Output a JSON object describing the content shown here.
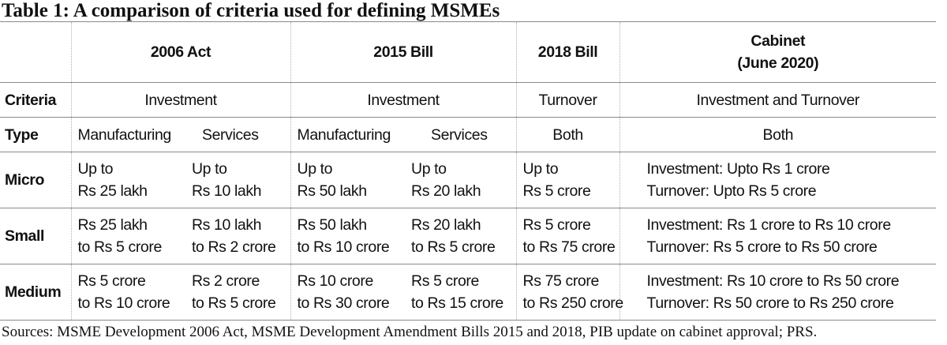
{
  "title": "Table 1: A comparison of criteria used for defining MSMEs",
  "headers": [
    "2006 Act",
    "2015 Bill",
    "2018 Bill",
    "Cabinet\n(June 2020)"
  ],
  "header_cabinet_line1": "Cabinet",
  "header_cabinet_line2": "(June 2020)",
  "criteria": {
    "label": "Criteria",
    "values": [
      "Investment",
      "Investment",
      "Turnover",
      "Investment and Turnover"
    ]
  },
  "type": {
    "label": "Type",
    "values": [
      "Manufacturing",
      "Services",
      "Manufacturing",
      "Services",
      "Both",
      "Both"
    ]
  },
  "rows": [
    {
      "label": "Micro",
      "cells": [
        [
          "Up to",
          "Rs 25 lakh"
        ],
        [
          "Up to",
          "Rs 10 lakh"
        ],
        [
          "Up to",
          "Rs 50 lakh"
        ],
        [
          "Up to",
          "Rs 20 lakh"
        ],
        [
          "Up to",
          "Rs 5 crore"
        ],
        [
          "Investment: Upto Rs 1 crore",
          "Turnover: Upto Rs 5 crore"
        ]
      ]
    },
    {
      "label": "Small",
      "cells": [
        [
          "Rs 25 lakh",
          "to Rs 5 crore"
        ],
        [
          "Rs 10 lakh",
          "to Rs 2 crore"
        ],
        [
          "Rs 50 lakh",
          "to Rs 10 crore"
        ],
        [
          "Rs 20 lakh",
          "to Rs 5 crore"
        ],
        [
          "Rs 5 crore",
          "to Rs 75 crore"
        ],
        [
          "Investment: Rs 1 crore to Rs 10 crore",
          "Turnover: Rs 5 crore to Rs 50 crore"
        ]
      ]
    },
    {
      "label": "Medium",
      "cells": [
        [
          "Rs 5 crore",
          "to Rs 10 crore"
        ],
        [
          "Rs 2 crore",
          "to Rs 5 crore"
        ],
        [
          "Rs 10 crore",
          "to Rs 30 crore"
        ],
        [
          "Rs 5 crore",
          "to Rs 15 crore"
        ],
        [
          "Rs 75 crore",
          "to Rs 250 crore"
        ],
        [
          "Investment: Rs 10 crore to Rs 50 crore",
          "Turnover: Rs 50 crore to Rs 250 crore"
        ]
      ]
    }
  ],
  "sources": "Sources: MSME Development 2006 Act, MSME Development Amendment Bills 2015 and 2018, PIB update on cabinet approval; PRS."
}
